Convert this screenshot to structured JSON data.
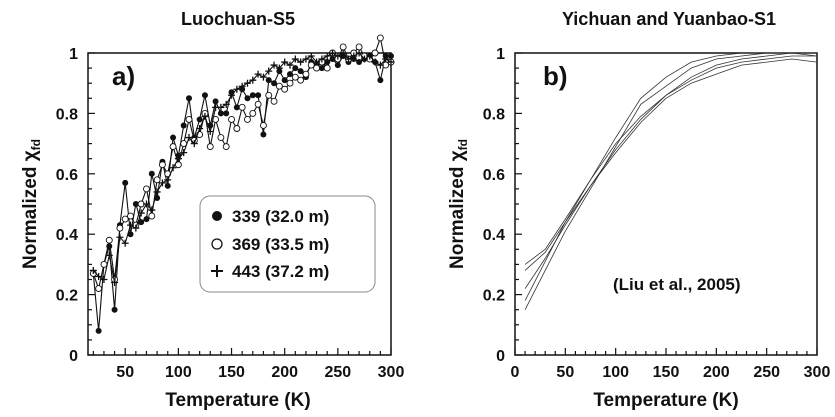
{
  "chart_data": [
    {
      "type": "line",
      "title": "Luochuan-S5",
      "panel_label": "a)",
      "xlabel": "Temperature (K)",
      "ylabel": "Normalized χ",
      "ylabel_sub": "fd",
      "xlim": [
        15,
        300
      ],
      "ylim": [
        0,
        1
      ],
      "xticks": [
        50,
        100,
        150,
        200,
        250,
        300
      ],
      "yticks": [
        0,
        0.2,
        0.4,
        0.6,
        0.8,
        1
      ],
      "ytick_labels": [
        "0",
        "0.2",
        "0.4",
        "0.6",
        "0.8",
        "1"
      ],
      "legend_position": "center-right",
      "series": [
        {
          "name": "339 (32.0 m)",
          "marker": "filled-circle",
          "x": [
            20,
            25,
            30,
            35,
            40,
            45,
            50,
            55,
            60,
            65,
            70,
            75,
            80,
            85,
            90,
            95,
            100,
            105,
            110,
            115,
            120,
            125,
            130,
            135,
            140,
            145,
            150,
            155,
            160,
            165,
            170,
            175,
            180,
            185,
            190,
            195,
            200,
            205,
            210,
            215,
            220,
            225,
            230,
            235,
            240,
            245,
            250,
            255,
            260,
            265,
            270,
            275,
            280,
            285,
            290,
            295,
            300
          ],
          "y": [
            0.27,
            0.08,
            0.3,
            0.36,
            0.15,
            0.43,
            0.57,
            0.4,
            0.5,
            0.44,
            0.45,
            0.6,
            0.52,
            0.64,
            0.56,
            0.72,
            0.66,
            0.76,
            0.85,
            0.72,
            0.78,
            0.86,
            0.76,
            0.84,
            0.8,
            0.8,
            0.87,
            0.82,
            0.88,
            0.85,
            0.86,
            0.86,
            0.73,
            0.91,
            0.9,
            0.94,
            0.91,
            0.93,
            0.95,
            0.94,
            0.92,
            0.97,
            0.96,
            0.95,
            0.97,
            0.98,
            0.96,
            0.99,
            0.97,
            0.98,
            0.97,
            0.98,
            0.99,
            0.97,
            0.91,
            0.99,
            0.99
          ]
        },
        {
          "name": "369 (33.5 m)",
          "marker": "open-circle",
          "x": [
            20,
            25,
            30,
            35,
            40,
            45,
            50,
            55,
            60,
            65,
            70,
            75,
            80,
            85,
            90,
            95,
            100,
            105,
            110,
            115,
            120,
            125,
            130,
            135,
            140,
            145,
            150,
            155,
            160,
            165,
            170,
            175,
            180,
            185,
            190,
            195,
            200,
            205,
            210,
            215,
            220,
            225,
            230,
            235,
            240,
            245,
            250,
            255,
            260,
            265,
            270,
            275,
            280,
            285,
            290,
            295,
            300
          ],
          "y": [
            0.27,
            0.22,
            0.3,
            0.38,
            0.25,
            0.42,
            0.45,
            0.46,
            0.43,
            0.5,
            0.55,
            0.46,
            0.58,
            0.63,
            0.6,
            0.69,
            0.63,
            0.7,
            0.78,
            0.71,
            0.73,
            0.8,
            0.69,
            0.78,
            0.72,
            0.69,
            0.78,
            0.75,
            0.82,
            0.78,
            0.8,
            0.83,
            0.76,
            0.86,
            0.84,
            0.89,
            0.88,
            0.9,
            0.92,
            0.91,
            0.93,
            0.96,
            0.95,
            0.97,
            0.95,
            1.0,
            0.98,
            1.02,
            0.98,
            1.0,
            1.02,
            0.99,
            0.98,
            1.0,
            1.05,
            0.96,
            0.97
          ]
        },
        {
          "name": "443 (37.2 m)",
          "marker": "plus",
          "x": [
            20,
            25,
            30,
            35,
            40,
            45,
            50,
            55,
            60,
            65,
            70,
            75,
            80,
            85,
            90,
            95,
            100,
            105,
            110,
            115,
            120,
            125,
            130,
            135,
            140,
            145,
            150,
            155,
            160,
            165,
            170,
            175,
            180,
            185,
            190,
            195,
            200,
            205,
            210,
            215,
            220,
            225,
            230,
            235,
            240,
            245,
            250,
            255,
            260,
            265,
            270,
            275,
            280,
            285,
            290,
            295,
            300
          ],
          "y": [
            0.28,
            0.26,
            0.25,
            0.33,
            0.24,
            0.39,
            0.37,
            0.43,
            0.42,
            0.47,
            0.5,
            0.48,
            0.54,
            0.57,
            0.58,
            0.62,
            0.65,
            0.67,
            0.72,
            0.7,
            0.75,
            0.79,
            0.74,
            0.82,
            0.82,
            0.83,
            0.86,
            0.88,
            0.89,
            0.9,
            0.91,
            0.93,
            0.92,
            0.94,
            0.96,
            0.95,
            0.97,
            0.96,
            0.98,
            0.97,
            0.98,
            0.99,
            0.97,
            0.98,
            0.99,
            1.0,
            0.99,
            1.0,
            0.98,
            0.99,
            1.0,
            0.98,
            0.99,
            0.97,
            0.96,
            0.98,
            0.97
          ]
        }
      ]
    },
    {
      "type": "line",
      "title": "Yichuan and Yuanbao-S1",
      "panel_label": "b)",
      "xlabel": "Temperature (K)",
      "ylabel": "Normalized χ",
      "ylabel_sub": "fd",
      "xlim": [
        0,
        300
      ],
      "ylim": [
        0,
        1
      ],
      "xticks": [
        0,
        50,
        100,
        150,
        200,
        250,
        300
      ],
      "yticks": [
        0,
        0.2,
        0.4,
        0.6,
        0.8,
        1
      ],
      "ytick_labels": [
        "0",
        "0.2",
        "0.4",
        "0.6",
        "0.8",
        "1"
      ],
      "annotation": "(Liu et al., 2005)",
      "series": [
        {
          "x": [
            10,
            30,
            50,
            75,
            100,
            125,
            150,
            175,
            200,
            225,
            250,
            275,
            300
          ],
          "y": [
            0.3,
            0.35,
            0.45,
            0.58,
            0.7,
            0.79,
            0.86,
            0.92,
            0.96,
            0.98,
            0.99,
            1.0,
            1.0
          ]
        },
        {
          "x": [
            10,
            30,
            50,
            75,
            100,
            125,
            150,
            175,
            200,
            225,
            250,
            275,
            300
          ],
          "y": [
            0.28,
            0.34,
            0.44,
            0.56,
            0.68,
            0.78,
            0.86,
            0.91,
            0.95,
            0.97,
            0.98,
            0.99,
            0.99
          ]
        },
        {
          "x": [
            10,
            30,
            50,
            75,
            100,
            125,
            150,
            175,
            200,
            225,
            250,
            275,
            300
          ],
          "y": [
            0.22,
            0.32,
            0.43,
            0.56,
            0.67,
            0.77,
            0.85,
            0.9,
            0.93,
            0.96,
            0.97,
            0.98,
            0.97
          ]
        },
        {
          "x": [
            10,
            30,
            50,
            75,
            100,
            125,
            150,
            175,
            200,
            225,
            250,
            275,
            300
          ],
          "y": [
            0.18,
            0.31,
            0.44,
            0.58,
            0.72,
            0.85,
            0.92,
            0.97,
            0.99,
            1.0,
            1.0,
            1.0,
            1.0
          ]
        },
        {
          "x": [
            10,
            30,
            50,
            75,
            100,
            125,
            150,
            175,
            200,
            225,
            250,
            275,
            300
          ],
          "y": [
            0.15,
            0.28,
            0.41,
            0.55,
            0.69,
            0.83,
            0.89,
            0.95,
            0.98,
            0.99,
            1.0,
            1.0,
            0.99
          ]
        }
      ]
    }
  ]
}
